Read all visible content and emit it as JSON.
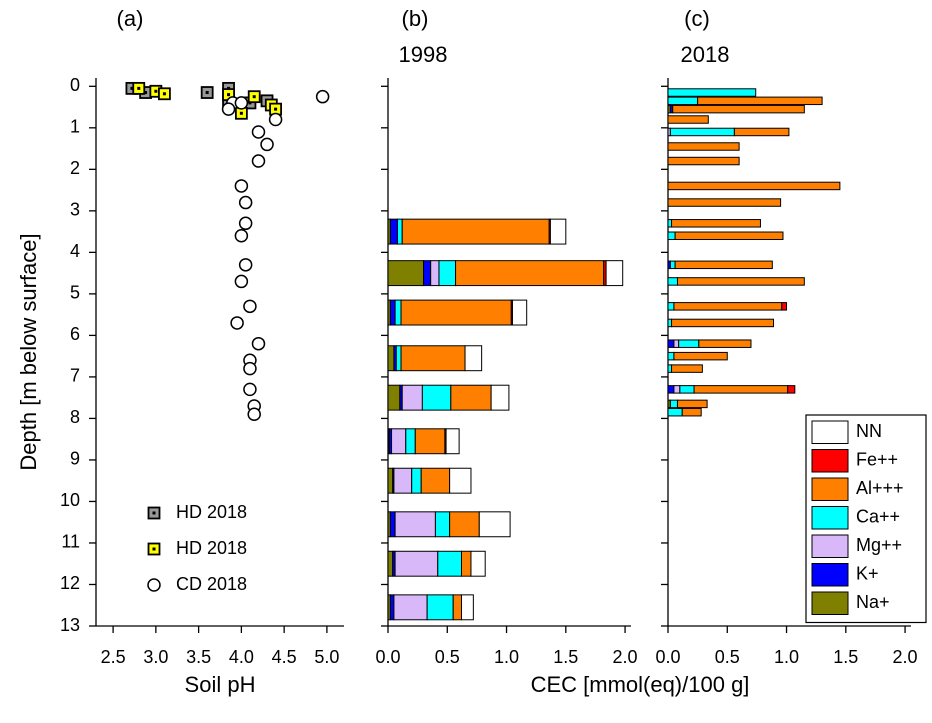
{
  "chart_data": [
    {
      "type": "scatter",
      "title": "(a)",
      "x_label": "Soil pH",
      "y_label": "Depth [m below surface]",
      "xlim": [
        2.3,
        5.2
      ],
      "xticks": [
        2.5,
        {
          "value": 3,
          "label": "3.0"
        },
        3.5,
        {
          "value": 4,
          "label": "4.0"
        },
        4.5,
        {
          "value": 5,
          "label": "5.0"
        }
      ],
      "ylim": [
        -0.2,
        13
      ],
      "y_inverted": true,
      "ytick_labels": true,
      "yticks": [
        0,
        1,
        2,
        3,
        4,
        5,
        6,
        7,
        8,
        9,
        10,
        11,
        12,
        13
      ],
      "legend": "lower left",
      "series": [
        {
          "name": "HD 2018",
          "color": "#999999",
          "marker": "square",
          "x": [
            2.72,
            2.88,
            3.6,
            3.85,
            3.85,
            4.1,
            4.3
          ],
          "values": [
            0.05,
            0.15,
            0.15,
            0.05,
            0.35,
            0.4,
            0.35
          ]
        },
        {
          "name": "HD 2018",
          "color": "#ffff00",
          "marker": "square",
          "x": [
            2.8,
            3.0,
            3.1,
            3.85,
            4.0,
            4.15,
            4.35,
            4.4
          ],
          "values": [
            0.05,
            0.12,
            0.18,
            0.2,
            0.65,
            0.25,
            0.45,
            0.55
          ]
        },
        {
          "name": "CD 2018",
          "color": "#ffffff",
          "marker": "circle",
          "x": [
            3.9,
            4.0,
            3.85,
            4.4,
            4.95,
            4.2,
            4.3,
            4.2,
            4.0,
            4.05,
            4.05,
            4.0,
            4.05,
            4.0,
            4.1,
            3.95,
            4.2,
            4.1,
            4.1,
            4.1,
            4.15,
            4.15
          ],
          "values": [
            0.4,
            0.4,
            0.55,
            0.8,
            0.25,
            1.1,
            1.4,
            1.8,
            2.4,
            2.8,
            3.3,
            3.6,
            4.3,
            4.7,
            5.3,
            5.7,
            6.2,
            6.6,
            6.8,
            7.3,
            7.7,
            7.9
          ]
        }
      ]
    },
    {
      "type": "barh",
      "title": "(b)",
      "subtitle": "1998",
      "xlim": [
        0,
        2.05
      ],
      "xticks": [
        {
          "value": 0,
          "label": "0.0"
        },
        0.5,
        {
          "value": 1,
          "label": "1.0"
        },
        1.5,
        {
          "value": 2,
          "label": "2.0"
        }
      ],
      "ylim": [
        -0.2,
        13
      ],
      "y_inverted": true,
      "ytick_labels": false,
      "yticks": [
        0,
        1,
        2,
        3,
        4,
        5,
        6,
        7,
        8,
        9,
        10,
        11,
        12,
        13
      ],
      "depths": [
        3.5,
        4.5,
        5.45,
        6.55,
        7.5,
        8.55,
        9.5,
        10.55,
        11.5,
        12.55
      ],
      "series": [
        {
          "color": "#808000",
          "values": [
            0.02,
            0.3,
            0.02,
            0.05,
            0.1,
            0.01,
            0.04,
            0.02,
            0.04,
            0.02
          ]
        },
        {
          "color": "#0000ff",
          "values": [
            0.06,
            0.06,
            0.04,
            0.02,
            0.02,
            0.02,
            0.01,
            0.04,
            0.02,
            0.03
          ]
        },
        {
          "color": "#d8b8f8",
          "values": [
            0,
            0.07,
            0,
            0,
            0.17,
            0.12,
            0.15,
            0.34,
            0.36,
            0.28
          ]
        },
        {
          "color": "#00ffff",
          "values": [
            0.04,
            0.14,
            0.05,
            0.04,
            0.24,
            0.08,
            0.08,
            0.12,
            0.2,
            0.22
          ]
        },
        {
          "color": "#ff8000",
          "values": [
            1.24,
            1.25,
            0.93,
            0.54,
            0.34,
            0.25,
            0.24,
            0.25,
            0.08,
            0.07
          ]
        },
        {
          "color": "#ff0000",
          "values": [
            0.01,
            0.02,
            0.01,
            0,
            0,
            0.01,
            0,
            0,
            0,
            0
          ]
        },
        {
          "color": "#ffffff",
          "values": [
            0.13,
            0.14,
            0.12,
            0.14,
            0.15,
            0.11,
            0.18,
            0.26,
            0.12,
            0.1
          ]
        }
      ]
    },
    {
      "type": "barh",
      "title": "(c)",
      "subtitle": "2018",
      "x_label": "CEC [mmol(eq)/100 g]",
      "xlim": [
        0,
        2.05
      ],
      "xticks": [
        {
          "value": 0,
          "label": "0.0"
        },
        0.5,
        {
          "value": 1,
          "label": "1.0"
        },
        1.5,
        {
          "value": 2,
          "label": "2.0"
        }
      ],
      "ylim": [
        -0.2,
        13
      ],
      "y_inverted": true,
      "ytick_labels": false,
      "yticks": [
        0,
        1,
        2,
        3,
        4,
        5,
        6,
        7,
        8,
        9,
        10,
        11,
        12,
        13
      ],
      "legend": "lower right",
      "depths": [
        0.15,
        0.35,
        0.55,
        0.8,
        1.1,
        1.45,
        1.8,
        2.4,
        2.8,
        3.3,
        3.6,
        4.3,
        4.7,
        5.3,
        5.7,
        6.2,
        6.5,
        6.8,
        7.3,
        7.65,
        7.85
      ],
      "series": [
        {
          "name": "Na+",
          "color": "#808000",
          "values": [
            0,
            0,
            0.02,
            0,
            0,
            0,
            0,
            0,
            0,
            0,
            0,
            0,
            0,
            0,
            0,
            0,
            0,
            0,
            0,
            0.02,
            0
          ]
        },
        {
          "name": "K+",
          "color": "#0000ff",
          "values": [
            0,
            0,
            0.02,
            0,
            0,
            0,
            0,
            0,
            0,
            0,
            0,
            0.02,
            0,
            0,
            0,
            0.05,
            0,
            0,
            0.05,
            0,
            0
          ]
        },
        {
          "name": "Mg++",
          "color": "#d8b8f8",
          "values": [
            0,
            0,
            0,
            0,
            0.02,
            0,
            0,
            0,
            0,
            0,
            0,
            0,
            0,
            0,
            0,
            0.04,
            0,
            0,
            0.05,
            0,
            0
          ]
        },
        {
          "name": "Ca++",
          "color": "#00ffff",
          "values": [
            0.74,
            0.25,
            0,
            0,
            0.54,
            0,
            0,
            0,
            0,
            0.03,
            0.06,
            0.04,
            0.08,
            0.05,
            0.03,
            0.17,
            0.05,
            0.03,
            0.12,
            0.06,
            0.12
          ]
        },
        {
          "name": "Al+++",
          "color": "#ff8000",
          "values": [
            0,
            1.05,
            1.11,
            0.34,
            0.46,
            0.6,
            0.6,
            1.45,
            0.95,
            0.75,
            0.91,
            0.82,
            1.07,
            0.91,
            0.86,
            0.44,
            0.45,
            0.26,
            0.79,
            0.25,
            0.16
          ]
        },
        {
          "name": "Fe++",
          "color": "#ff0000",
          "values": [
            0,
            0,
            0,
            0,
            0,
            0,
            0,
            0,
            0,
            0,
            0,
            0,
            0,
            0.04,
            0,
            0,
            0,
            0,
            0.06,
            0,
            0
          ]
        },
        {
          "name": "NN",
          "color": "#ffffff",
          "values": [
            0,
            0,
            0,
            0,
            0,
            0,
            0,
            0,
            0,
            0,
            0,
            0,
            0,
            0,
            0,
            0,
            0,
            0,
            0,
            0,
            0
          ]
        }
      ]
    }
  ]
}
